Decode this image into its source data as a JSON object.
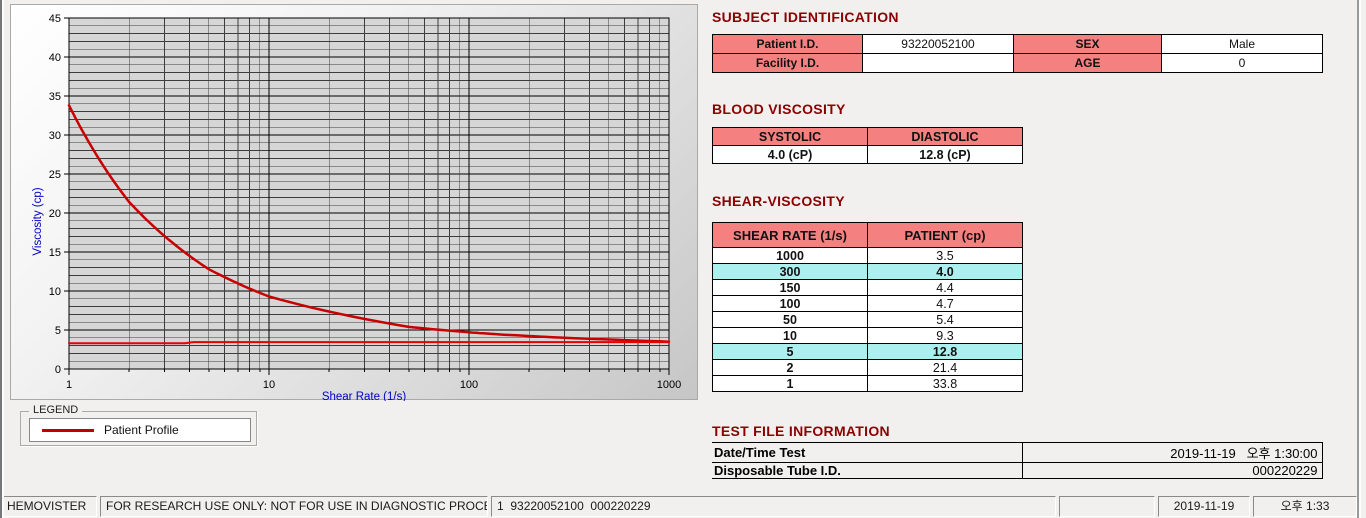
{
  "app": {
    "name": "HEMOVISTER"
  },
  "chart_data": {
    "type": "line",
    "title": "",
    "xlabel": "Shear Rate (1/s)",
    "ylabel": "Viscosity (cp)",
    "x_scale": "log",
    "xlim": [
      1,
      1000
    ],
    "ylim": [
      0,
      45
    ],
    "x_ticks": [
      1,
      10,
      100,
      1000
    ],
    "y_tick_step_major": 5,
    "y_tick_step_minor": 1,
    "grid": true,
    "plot_bg": "#d6d6d6",
    "axis_label_color": "#0000c8",
    "legend_position": "separate-box-below-left",
    "series": [
      {
        "name": "Patient Profile",
        "color": "#c80000",
        "width": 2.5,
        "x": [
          1,
          2,
          5,
          10,
          50,
          100,
          150,
          300,
          1000
        ],
        "y": [
          33.8,
          21.4,
          12.8,
          9.3,
          5.4,
          4.7,
          4.4,
          4.0,
          3.5
        ]
      },
      {
        "name": "baseline-flat-line",
        "color": "#e60000",
        "width": 2,
        "x": [
          1,
          3.8,
          4.2,
          1000
        ],
        "y": [
          3.3,
          3.3,
          3.45,
          3.45
        ]
      }
    ]
  },
  "legend": {
    "box_title": "LEGEND",
    "entry": "Patient Profile",
    "line_color": "#c00000"
  },
  "subject": {
    "title": "SUBJECT IDENTIFICATION",
    "rows": [
      {
        "label1": "Patient I.D.",
        "value1": "93220052100",
        "label2": "SEX",
        "value2": "Male"
      },
      {
        "label1": "Facility I.D.",
        "value1": "",
        "label2": "AGE",
        "value2": "0"
      }
    ]
  },
  "blood": {
    "title": "BLOOD VISCOSITY",
    "headers": [
      "SYSTOLIC",
      "DIASTOLIC"
    ],
    "values": [
      "4.0 (cP)",
      "12.8 (cP)"
    ]
  },
  "shear": {
    "title": "SHEAR-VISCOSITY",
    "headers": [
      "SHEAR RATE (1/s)",
      "PATIENT (cp)"
    ],
    "rows": [
      {
        "rate": "1000",
        "value": "3.5",
        "highlight": false
      },
      {
        "rate": "300",
        "value": "4.0",
        "highlight": true
      },
      {
        "rate": "150",
        "value": "4.4",
        "highlight": false
      },
      {
        "rate": "100",
        "value": "4.7",
        "highlight": false
      },
      {
        "rate": "50",
        "value": "5.4",
        "highlight": false
      },
      {
        "rate": "10",
        "value": "9.3",
        "highlight": false
      },
      {
        "rate": "5",
        "value": "12.8",
        "highlight": true
      },
      {
        "rate": "2",
        "value": "21.4",
        "highlight": false
      },
      {
        "rate": "1",
        "value": "33.8",
        "highlight": false
      }
    ]
  },
  "testfile": {
    "title": "TEST FILE INFORMATION",
    "rows": [
      {
        "label": "Date/Time Test",
        "value": "2019-11-19   오후 1:30:00"
      },
      {
        "label": "Disposable Tube I.D.",
        "value": "000220229"
      }
    ]
  },
  "statusbar": {
    "items": [
      {
        "text": "HEMOVISTER"
      },
      {
        "text": "FOR RESEARCH USE ONLY: NOT FOR USE IN DIAGNOSTIC PROCEDURES"
      },
      {
        "text": "1  93220052100  000220229"
      },
      {
        "text": ""
      },
      {
        "text": "2019-11-19"
      },
      {
        "text": "오후 1:33"
      }
    ]
  },
  "colors": {
    "title_maroon": "#8b0000",
    "header_salmon": "#f58080",
    "highlight_cyan": "#abf0ee",
    "curve_red": "#c80000",
    "axis_blue": "#0000c8"
  }
}
